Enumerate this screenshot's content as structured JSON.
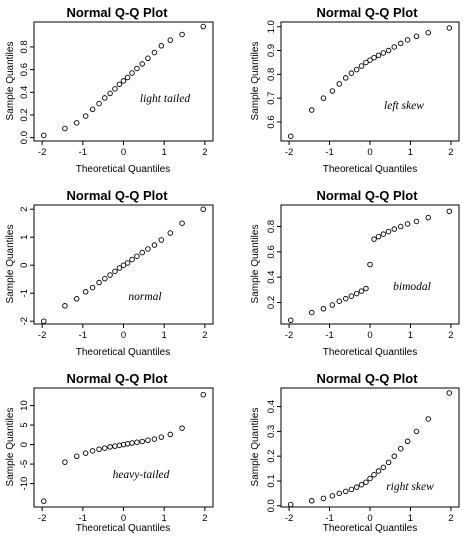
{
  "chart_data": [
    {
      "type": "scatter",
      "title": "Normal Q-Q Plot",
      "xlabel": "Theoretical Quantiles",
      "ylabel": "Sample Quantiles",
      "annotation": "light tailed",
      "xlim": [
        -2.2,
        2.2
      ],
      "ylim": [
        -0.03,
        1.02
      ],
      "xticks": [
        -2,
        -1,
        0,
        1,
        2
      ],
      "yticks": [
        0.0,
        0.2,
        0.4,
        0.6,
        0.8
      ],
      "x": [
        -1.96,
        -1.44,
        -1.15,
        -0.93,
        -0.76,
        -0.6,
        -0.46,
        -0.33,
        -0.21,
        -0.1,
        0.0,
        0.1,
        0.21,
        0.33,
        0.46,
        0.6,
        0.76,
        0.93,
        1.15,
        1.44,
        1.96
      ],
      "y": [
        0.02,
        0.08,
        0.13,
        0.19,
        0.25,
        0.3,
        0.35,
        0.39,
        0.43,
        0.47,
        0.5,
        0.53,
        0.57,
        0.61,
        0.65,
        0.7,
        0.75,
        0.81,
        0.86,
        0.91,
        0.98
      ]
    },
    {
      "type": "scatter",
      "title": "Normal Q-Q Plot",
      "xlabel": "Theoretical Quantiles",
      "ylabel": "Sample Quantiles",
      "annotation": "left skew",
      "xlim": [
        -2.2,
        2.2
      ],
      "ylim": [
        0.52,
        1.02
      ],
      "xticks": [
        -2,
        -1,
        0,
        1,
        2
      ],
      "yticks": [
        0.6,
        0.7,
        0.8,
        0.9,
        1.0
      ],
      "x": [
        -1.96,
        -1.44,
        -1.15,
        -0.93,
        -0.76,
        -0.6,
        -0.46,
        -0.33,
        -0.21,
        -0.1,
        0.0,
        0.1,
        0.21,
        0.33,
        0.46,
        0.6,
        0.76,
        0.93,
        1.15,
        1.44,
        1.96
      ],
      "y": [
        0.54,
        0.65,
        0.7,
        0.73,
        0.76,
        0.785,
        0.805,
        0.82,
        0.835,
        0.85,
        0.86,
        0.87,
        0.88,
        0.89,
        0.9,
        0.915,
        0.93,
        0.945,
        0.96,
        0.975,
        0.995
      ]
    },
    {
      "type": "scatter",
      "title": "Normal Q-Q Plot",
      "xlabel": "Theoretical Quantiles",
      "ylabel": "Sample Quantiles",
      "annotation": "normal",
      "xlim": [
        -2.2,
        2.2
      ],
      "ylim": [
        -2.1,
        2.15
      ],
      "xticks": [
        -2,
        -1,
        0,
        1,
        2
      ],
      "yticks": [
        -2,
        -1,
        0,
        1,
        2
      ],
      "x": [
        -1.96,
        -1.44,
        -1.15,
        -0.93,
        -0.76,
        -0.6,
        -0.46,
        -0.33,
        -0.21,
        -0.1,
        0.0,
        0.1,
        0.21,
        0.33,
        0.46,
        0.6,
        0.76,
        0.93,
        1.15,
        1.44,
        1.96
      ],
      "y": [
        -2.0,
        -1.45,
        -1.2,
        -0.95,
        -0.8,
        -0.62,
        -0.48,
        -0.35,
        -0.22,
        -0.1,
        0.0,
        0.08,
        0.2,
        0.32,
        0.45,
        0.58,
        0.72,
        0.9,
        1.15,
        1.5,
        2.0
      ]
    },
    {
      "type": "scatter",
      "title": "Normal Q-Q Plot",
      "xlabel": "Theoretical Quantiles",
      "ylabel": "Sample Quantiles",
      "annotation": "bimodal",
      "xlim": [
        -2.2,
        2.2
      ],
      "ylim": [
        0.03,
        0.97
      ],
      "xticks": [
        -2,
        -1,
        0,
        1,
        2
      ],
      "yticks": [
        0.2,
        0.4,
        0.6,
        0.8
      ],
      "x": [
        -1.96,
        -1.44,
        -1.15,
        -0.93,
        -0.76,
        -0.6,
        -0.46,
        -0.33,
        -0.21,
        -0.1,
        0.0,
        0.1,
        0.21,
        0.33,
        0.46,
        0.6,
        0.76,
        0.93,
        1.15,
        1.44,
        1.96
      ],
      "y": [
        0.06,
        0.12,
        0.15,
        0.18,
        0.21,
        0.23,
        0.25,
        0.27,
        0.29,
        0.31,
        0.5,
        0.7,
        0.72,
        0.74,
        0.76,
        0.78,
        0.8,
        0.82,
        0.84,
        0.87,
        0.92
      ]
    },
    {
      "type": "scatter",
      "title": "Normal Q-Q Plot",
      "xlabel": "Theoretical Quantiles",
      "ylabel": "Sample Quantiles",
      "annotation": "heavy-tailed",
      "xlim": [
        -2.2,
        2.2
      ],
      "ylim": [
        -16,
        14.5
      ],
      "xticks": [
        -2,
        -1,
        0,
        1,
        2
      ],
      "yticks": [
        -10,
        -5,
        0,
        5,
        10
      ],
      "x": [
        -1.96,
        -1.44,
        -1.15,
        -0.93,
        -0.76,
        -0.6,
        -0.46,
        -0.33,
        -0.21,
        -0.1,
        0.0,
        0.1,
        0.21,
        0.33,
        0.46,
        0.6,
        0.76,
        0.93,
        1.15,
        1.44,
        1.96
      ],
      "y": [
        -14.5,
        -4.5,
        -3.0,
        -2.2,
        -1.6,
        -1.2,
        -0.9,
        -0.6,
        -0.4,
        -0.2,
        0.0,
        0.2,
        0.4,
        0.6,
        0.8,
        1.1,
        1.4,
        1.9,
        2.6,
        4.2,
        12.8
      ]
    },
    {
      "type": "scatter",
      "title": "Normal Q-Q Plot",
      "xlabel": "Theoretical Quantiles",
      "ylabel": "Sample Quantiles",
      "annotation": "right skew",
      "xlim": [
        -2.2,
        2.2
      ],
      "ylim": [
        -0.005,
        0.475
      ],
      "xticks": [
        -2,
        -1,
        0,
        1,
        2
      ],
      "yticks": [
        0.0,
        0.1,
        0.2,
        0.3,
        0.4
      ],
      "x": [
        -1.96,
        -1.44,
        -1.15,
        -0.93,
        -0.76,
        -0.6,
        -0.46,
        -0.33,
        -0.21,
        -0.1,
        0.0,
        0.1,
        0.21,
        0.33,
        0.46,
        0.6,
        0.76,
        0.93,
        1.15,
        1.44,
        1.96
      ],
      "y": [
        0.005,
        0.02,
        0.03,
        0.04,
        0.05,
        0.058,
        0.066,
        0.075,
        0.085,
        0.095,
        0.11,
        0.125,
        0.14,
        0.155,
        0.175,
        0.2,
        0.23,
        0.26,
        0.3,
        0.35,
        0.455
      ]
    }
  ]
}
